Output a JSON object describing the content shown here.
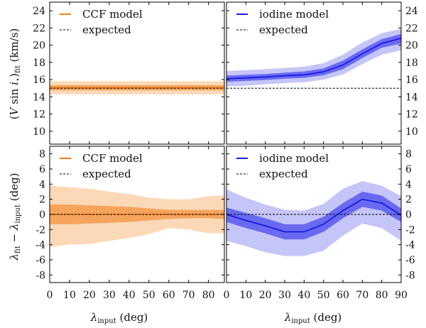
{
  "chart_data": [
    {
      "type": "area",
      "panel": "top-left",
      "ylabel": "(V sin i⋆)fit (km/s)",
      "xlabel": "",
      "xlim": [
        0,
        88
      ],
      "ylim": [
        8.5,
        25
      ],
      "yticks": [
        10,
        12,
        14,
        16,
        18,
        20,
        22,
        24
      ],
      "xticks": [
        0,
        10,
        20,
        30,
        40,
        50,
        60,
        70,
        80
      ],
      "legend_position": "top-left",
      "colors": {
        "line": "#f07d1e",
        "band_inner": "#f5a45e",
        "band_outer": "#fcd9b6"
      },
      "series": [
        {
          "name": "CCF model",
          "x": [
            0,
            10,
            20,
            30,
            40,
            50,
            60,
            70,
            80,
            88
          ],
          "y": [
            15.05,
            15.05,
            15.05,
            15.05,
            15.05,
            15.05,
            15.05,
            15.05,
            15.05,
            15.05
          ],
          "band_inner": {
            "lo": [
              14.75,
              14.75,
              14.75,
              14.75,
              14.75,
              14.75,
              14.75,
              14.75,
              14.75,
              14.75
            ],
            "hi": [
              15.35,
              15.35,
              15.35,
              15.35,
              15.35,
              15.35,
              15.35,
              15.35,
              15.35,
              15.35
            ]
          },
          "band_outer": {
            "lo": [
              14.3,
              14.3,
              14.3,
              14.3,
              14.3,
              14.3,
              14.3,
              14.3,
              14.3,
              14.3
            ],
            "hi": [
              15.8,
              15.8,
              15.8,
              15.8,
              15.8,
              15.8,
              15.8,
              15.8,
              15.8,
              15.8
            ]
          }
        },
        {
          "name": "expected",
          "x": [
            0,
            88
          ],
          "y": [
            15,
            15
          ],
          "style": "dashed"
        }
      ]
    },
    {
      "type": "area",
      "panel": "top-right",
      "ylabel": "",
      "xlabel": "",
      "xlim": [
        0,
        90
      ],
      "ylim": [
        8.5,
        25
      ],
      "yticks": [
        10,
        12,
        14,
        16,
        18,
        20,
        22,
        24
      ],
      "xticks": [
        0,
        10,
        20,
        30,
        40,
        50,
        60,
        70,
        80,
        90
      ],
      "legend_position": "top-left",
      "colors": {
        "line": "#1a1ae6",
        "band_inner": "#6a6af0",
        "band_outer": "#c5c5f8"
      },
      "series": [
        {
          "name": "iodine model",
          "x": [
            0,
            10,
            20,
            30,
            40,
            50,
            60,
            70,
            80,
            90
          ],
          "y": [
            16.1,
            16.2,
            16.3,
            16.45,
            16.55,
            16.9,
            17.7,
            19.0,
            20.2,
            20.8
          ],
          "band_inner": {
            "lo": [
              15.75,
              15.85,
              15.95,
              16.1,
              16.2,
              16.5,
              17.2,
              18.5,
              19.7,
              20.2
            ],
            "hi": [
              16.45,
              16.55,
              16.65,
              16.8,
              16.95,
              17.3,
              18.2,
              19.5,
              20.7,
              21.3
            ]
          },
          "band_outer": {
            "lo": [
              15.2,
              15.3,
              15.45,
              15.6,
              15.7,
              16.0,
              16.6,
              17.8,
              18.9,
              19.4
            ],
            "hi": [
              17.0,
              17.1,
              17.2,
              17.35,
              17.5,
              17.9,
              18.9,
              20.3,
              21.4,
              21.9
            ]
          }
        },
        {
          "name": "expected",
          "x": [
            0,
            90
          ],
          "y": [
            15,
            15
          ],
          "style": "dashed"
        }
      ]
    },
    {
      "type": "area",
      "panel": "bottom-left",
      "ylabel": "λfit − λinput (deg)",
      "xlabel": "λinput (deg)",
      "xlim": [
        0,
        88
      ],
      "ylim": [
        -9,
        9
      ],
      "yticks": [
        -8,
        -6,
        -4,
        -2,
        0,
        2,
        4,
        6,
        8
      ],
      "xticks": [
        0,
        10,
        20,
        30,
        40,
        50,
        60,
        70,
        80
      ],
      "legend_position": "top-left",
      "colors": {
        "line": "#f07d1e",
        "band_inner": "#f5a45e",
        "band_outer": "#fcd9b6"
      },
      "series": [
        {
          "name": "CCF model",
          "x": [
            0,
            10,
            20,
            30,
            40,
            50,
            60,
            70,
            80,
            88
          ],
          "y": [
            0,
            0,
            0,
            0,
            0,
            0,
            0,
            0,
            0,
            0
          ],
          "band_inner": {
            "lo": [
              -1.3,
              -1.3,
              -1.2,
              -1.1,
              -1.0,
              -0.8,
              -0.6,
              -0.5,
              -0.5,
              -0.6
            ],
            "hi": [
              1.3,
              1.3,
              1.2,
              1.1,
              1.0,
              0.8,
              0.6,
              0.6,
              0.6,
              0.6
            ]
          },
          "band_outer": {
            "lo": [
              -4.3,
              -4.0,
              -3.9,
              -3.5,
              -3.1,
              -2.6,
              -1.8,
              -2.0,
              -2.5,
              -2.5
            ],
            "hi": [
              3.8,
              3.6,
              3.4,
              3.0,
              2.7,
              2.2,
              2.0,
              2.0,
              2.4,
              2.5
            ]
          }
        },
        {
          "name": "expected",
          "x": [
            0,
            88
          ],
          "y": [
            0,
            0
          ],
          "style": "dashed"
        }
      ]
    },
    {
      "type": "area",
      "panel": "bottom-right",
      "ylabel": "",
      "xlabel": "λinput (deg)",
      "xlim": [
        0,
        90
      ],
      "ylim": [
        -9,
        9
      ],
      "yticks": [
        -8,
        -6,
        -4,
        -2,
        0,
        2,
        4,
        6,
        8
      ],
      "xticks": [
        0,
        10,
        20,
        30,
        40,
        50,
        60,
        70,
        80,
        90
      ],
      "legend_position": "top-left",
      "colors": {
        "line": "#1a1ae6",
        "band_inner": "#6a6af0",
        "band_outer": "#c5c5f8"
      },
      "series": [
        {
          "name": "iodine model",
          "x": [
            0,
            10,
            20,
            30,
            40,
            50,
            60,
            70,
            80,
            90
          ],
          "y": [
            0.0,
            -0.8,
            -1.5,
            -2.3,
            -2.3,
            -1.3,
            0.5,
            2.0,
            1.5,
            -0.1
          ],
          "band_inner": {
            "lo": [
              -1.0,
              -1.8,
              -2.5,
              -3.3,
              -3.3,
              -2.3,
              -0.5,
              1.0,
              0.5,
              -1.0
            ],
            "hi": [
              0.9,
              0.2,
              -0.5,
              -1.3,
              -1.3,
              -0.3,
              1.5,
              3.0,
              2.5,
              0.8
            ]
          },
          "band_outer": {
            "lo": [
              -3.5,
              -4.2,
              -5.0,
              -5.5,
              -5.5,
              -4.8,
              -2.8,
              -1.2,
              -1.8,
              -3.5
            ],
            "hi": [
              3.3,
              2.2,
              1.3,
              0.6,
              0.5,
              1.4,
              3.4,
              4.4,
              3.8,
              2.4
            ]
          }
        },
        {
          "name": "expected",
          "x": [
            0,
            90
          ],
          "y": [
            0,
            0
          ],
          "style": "dashed"
        }
      ]
    }
  ]
}
